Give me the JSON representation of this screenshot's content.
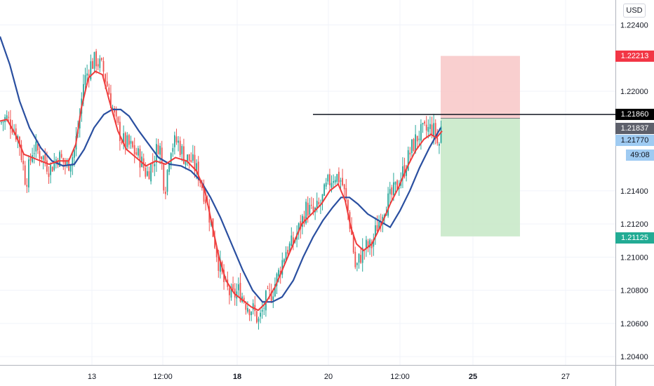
{
  "currency": "USD",
  "colors": {
    "bull": "#26a69a",
    "bear": "#ef5350",
    "fast_ma": "#ef3b3b",
    "slow_ma": "#2a4fa0",
    "risk_zone": "#f8c7c7",
    "reward_zone": "#c9e9c9",
    "grid": "#f0f3fa"
  },
  "chart_data": {
    "type": "candlestick",
    "y_axis": {
      "ticks": [
        "1.22400",
        "1.22000",
        "1.21400",
        "1.21200",
        "1.21000",
        "1.20800",
        "1.20600",
        "1.20400"
      ],
      "ylim": [
        1.2035,
        1.2255
      ]
    },
    "x_axis": {
      "ticks": [
        {
          "label": "13",
          "bold": false
        },
        {
          "label": "12:00",
          "bold": false
        },
        {
          "label": "18",
          "bold": true
        },
        {
          "label": "20",
          "bold": false
        },
        {
          "label": "12:00",
          "bold": false
        },
        {
          "label": "25",
          "bold": true
        },
        {
          "label": "27",
          "bold": false
        }
      ]
    },
    "price_path": [
      [
        0,
        1.2181
      ],
      [
        8,
        1.2184
      ],
      [
        16,
        1.218
      ],
      [
        26,
        1.2171
      ],
      [
        36,
        1.2145
      ],
      [
        46,
        1.2166
      ],
      [
        58,
        1.2162
      ],
      [
        70,
        1.2153
      ],
      [
        82,
        1.2161
      ],
      [
        94,
        1.2155
      ],
      [
        104,
        1.2162
      ],
      [
        112,
        1.2182
      ],
      [
        118,
        1.2205
      ],
      [
        128,
        1.2216
      ],
      [
        136,
        1.2219
      ],
      [
        146,
        1.2213
      ],
      [
        154,
        1.22
      ],
      [
        164,
        1.2181
      ],
      [
        174,
        1.217
      ],
      [
        186,
        1.2166
      ],
      [
        198,
        1.216
      ],
      [
        208,
        1.215
      ],
      [
        218,
        1.2158
      ],
      [
        226,
        1.217
      ],
      [
        234,
        1.214
      ],
      [
        242,
        1.2167
      ],
      [
        252,
        1.217
      ],
      [
        262,
        1.216
      ],
      [
        272,
        1.2158
      ],
      [
        282,
        1.215
      ],
      [
        292,
        1.2136
      ],
      [
        302,
        1.2116
      ],
      [
        310,
        1.2098
      ],
      [
        320,
        1.2082
      ],
      [
        330,
        1.2076
      ],
      [
        340,
        1.208
      ],
      [
        350,
        1.2072
      ],
      [
        360,
        1.2068
      ],
      [
        368,
        1.2061
      ],
      [
        378,
        1.2074
      ],
      [
        386,
        1.2078
      ],
      [
        396,
        1.209
      ],
      [
        406,
        1.2104
      ],
      [
        416,
        1.2108
      ],
      [
        426,
        1.2118
      ],
      [
        436,
        1.213
      ],
      [
        446,
        1.2126
      ],
      [
        456,
        1.2132
      ],
      [
        466,
        1.2144
      ],
      [
        476,
        1.215
      ],
      [
        486,
        1.2146
      ],
      [
        494,
        1.213
      ],
      [
        500,
        1.2114
      ],
      [
        506,
        1.2092
      ],
      [
        512,
        1.21
      ],
      [
        520,
        1.2106
      ],
      [
        528,
        1.2106
      ],
      [
        536,
        1.2118
      ],
      [
        546,
        1.213
      ],
      [
        556,
        1.2136
      ],
      [
        566,
        1.2144
      ],
      [
        576,
        1.2154
      ],
      [
        586,
        1.2166
      ],
      [
        596,
        1.2174
      ],
      [
        606,
        1.2176
      ],
      [
        614,
        1.2178
      ],
      [
        620,
        1.2174
      ],
      [
        624,
        1.2165
      ],
      [
        628,
        1.2179
      ]
    ],
    "fast_ma": [
      [
        0,
        1.2182
      ],
      [
        10,
        1.2183
      ],
      [
        22,
        1.2174
      ],
      [
        34,
        1.2162
      ],
      [
        46,
        1.216
      ],
      [
        58,
        1.2158
      ],
      [
        70,
        1.2156
      ],
      [
        84,
        1.2158
      ],
      [
        98,
        1.2158
      ],
      [
        108,
        1.2168
      ],
      [
        116,
        1.219
      ],
      [
        126,
        1.2208
      ],
      [
        136,
        1.2212
      ],
      [
        146,
        1.221
      ],
      [
        156,
        1.2194
      ],
      [
        168,
        1.2176
      ],
      [
        180,
        1.2165
      ],
      [
        194,
        1.216
      ],
      [
        208,
        1.2155
      ],
      [
        222,
        1.2158
      ],
      [
        236,
        1.2156
      ],
      [
        250,
        1.216
      ],
      [
        266,
        1.2158
      ],
      [
        280,
        1.2152
      ],
      [
        292,
        1.214
      ],
      [
        302,
        1.212
      ],
      [
        312,
        1.21
      ],
      [
        322,
        1.2086
      ],
      [
        334,
        1.2078
      ],
      [
        346,
        1.2074
      ],
      [
        358,
        1.207
      ],
      [
        368,
        1.2068
      ],
      [
        378,
        1.2072
      ],
      [
        392,
        1.2082
      ],
      [
        406,
        1.2096
      ],
      [
        418,
        1.2108
      ],
      [
        430,
        1.212
      ],
      [
        444,
        1.2126
      ],
      [
        458,
        1.2132
      ],
      [
        470,
        1.214
      ],
      [
        482,
        1.2144
      ],
      [
        492,
        1.2134
      ],
      [
        500,
        1.2118
      ],
      [
        508,
        1.2108
      ],
      [
        518,
        1.2104
      ],
      [
        530,
        1.2108
      ],
      [
        544,
        1.212
      ],
      [
        556,
        1.2132
      ],
      [
        568,
        1.2142
      ],
      [
        580,
        1.2154
      ],
      [
        592,
        1.2164
      ],
      [
        604,
        1.2171
      ],
      [
        614,
        1.2174
      ],
      [
        622,
        1.2172
      ],
      [
        630,
        1.2176
      ]
    ],
    "slow_ma": [
      [
        0,
        1.2233
      ],
      [
        14,
        1.2216
      ],
      [
        28,
        1.2194
      ],
      [
        42,
        1.2178
      ],
      [
        58,
        1.2166
      ],
      [
        74,
        1.2158
      ],
      [
        90,
        1.2155
      ],
      [
        106,
        1.2156
      ],
      [
        120,
        1.2165
      ],
      [
        134,
        1.2178
      ],
      [
        148,
        1.2186
      ],
      [
        160,
        1.2189
      ],
      [
        172,
        1.2189
      ],
      [
        184,
        1.2185
      ],
      [
        198,
        1.2176
      ],
      [
        212,
        1.2168
      ],
      [
        226,
        1.216
      ],
      [
        242,
        1.2156
      ],
      [
        258,
        1.2155
      ],
      [
        272,
        1.2152
      ],
      [
        286,
        1.2146
      ],
      [
        300,
        1.2136
      ],
      [
        314,
        1.2124
      ],
      [
        330,
        1.2108
      ],
      [
        346,
        1.2092
      ],
      [
        360,
        1.208
      ],
      [
        374,
        1.2073
      ],
      [
        388,
        1.2073
      ],
      [
        402,
        1.2076
      ],
      [
        418,
        1.2086
      ],
      [
        432,
        1.21
      ],
      [
        446,
        1.2112
      ],
      [
        460,
        1.2122
      ],
      [
        474,
        1.213
      ],
      [
        486,
        1.2136
      ],
      [
        498,
        1.2136
      ],
      [
        510,
        1.2132
      ],
      [
        524,
        1.2126
      ],
      [
        540,
        1.2122
      ],
      [
        556,
        1.2118
      ],
      [
        570,
        1.2128
      ],
      [
        584,
        1.214
      ],
      [
        598,
        1.2154
      ],
      [
        612,
        1.2166
      ],
      [
        628,
        1.2178
      ]
    ],
    "horizontal_line": 1.2186,
    "position": {
      "entry": 1.21837,
      "stop": 1.22213,
      "target": 1.21125
    },
    "price_tags": [
      {
        "price": 1.22213,
        "label": "1.22213",
        "bg": "#f23645",
        "fg": "#ffffff"
      },
      {
        "price": 1.2186,
        "label": "1.21860",
        "bg": "#000000",
        "fg": "#ffffff"
      },
      {
        "price": 1.21837,
        "label": "1.21837",
        "bg": "#5d606b",
        "fg": "#ffffff"
      },
      {
        "price": 1.2177,
        "label": "1.21770",
        "bg": "#9fcbf2",
        "fg": "#131722"
      },
      {
        "price": 1.2173,
        "label": "49:08",
        "bg": "#9fcbf2",
        "fg": "#131722"
      },
      {
        "price": 1.21125,
        "label": "1.21125",
        "bg": "#22ab94",
        "fg": "#ffffff"
      }
    ]
  }
}
